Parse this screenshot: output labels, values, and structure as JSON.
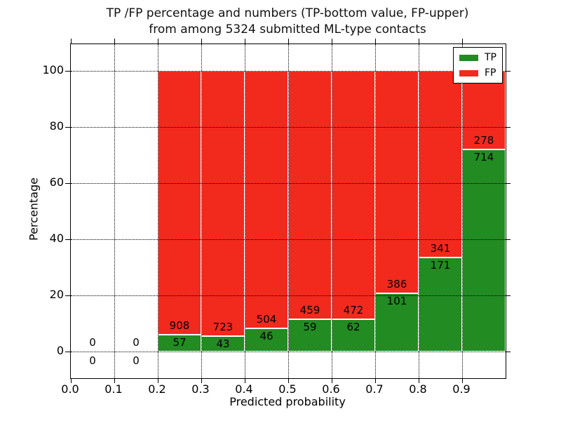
{
  "figure": {
    "title": {
      "line1": "TP /FP percentage and numbers (TP-bottom value, FP-upper)",
      "line2": "from among 5324 submitted ML-type contacts"
    }
  },
  "axes": {
    "xlabel": "Predicted probability",
    "ylabel": "Percentage",
    "x_tick_labels": [
      "0.0",
      "0.1",
      "0.2",
      "0.3",
      "0.4",
      "0.5",
      "0.6",
      "0.7",
      "0.8",
      "0.9"
    ],
    "y_tick_labels": [
      "0",
      "20",
      "40",
      "60",
      "80",
      "100"
    ]
  },
  "legend": {
    "items": [
      {
        "label": "TP",
        "color": "#228b22"
      },
      {
        "label": "FP",
        "color": "#f2291d"
      }
    ]
  },
  "chart_data": {
    "type": "bar",
    "stacked": true,
    "normalized_to_percent": 100,
    "title": "TP /FP percentage and numbers (TP-bottom value, FP-upper)\nfrom among 5324 submitted ML-type contacts",
    "xlabel": "Predicted probability",
    "ylabel": "Percentage",
    "bin_width": 0.1,
    "bin_starts": [
      0.0,
      0.1,
      0.2,
      0.3,
      0.4,
      0.5,
      0.6,
      0.7,
      0.8,
      0.9
    ],
    "series": [
      {
        "name": "TP",
        "color": "#228b22",
        "counts": [
          0,
          0,
          57,
          43,
          46,
          59,
          62,
          101,
          171,
          714
        ]
      },
      {
        "name": "FP",
        "color": "#f2291d",
        "counts": [
          0,
          0,
          908,
          723,
          504,
          459,
          472,
          386,
          341,
          278
        ]
      }
    ],
    "tp_percent_by_bin": [
      null,
      null,
      5.91,
      5.61,
      8.36,
      11.39,
      11.61,
      20.74,
      33.4,
      71.98
    ],
    "total_contacts": 5324,
    "xlim": [
      0.0,
      1.0
    ],
    "ylim": [
      -9.5,
      109.5
    ],
    "x_ticks": [
      0.0,
      0.1,
      0.2,
      0.3,
      0.4,
      0.5,
      0.6,
      0.7,
      0.8,
      0.9
    ],
    "y_ticks": [
      0,
      20,
      40,
      60,
      80,
      100
    ],
    "grid": "dotted",
    "legend_position": "upper right"
  }
}
